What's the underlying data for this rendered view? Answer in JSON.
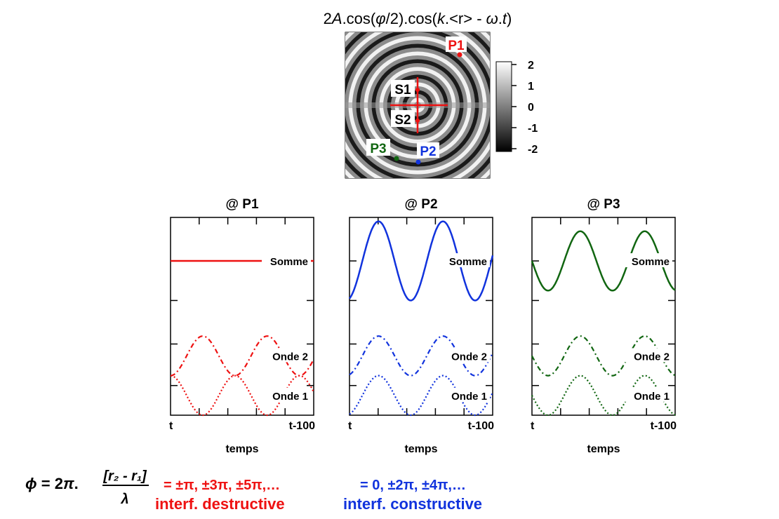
{
  "header": {
    "equation_title": {
      "prefix": "2",
      "A": "A",
      "cos1": ".cos(",
      "phi": "φ",
      "half": "/2).cos(",
      "k": "k",
      "r_part": ".<r> - ",
      "omega": "ω",
      "t_part": ".",
      "t": "t",
      "close": ")"
    }
  },
  "interference_map": {
    "colorbar_ticks": [
      "2",
      "1",
      "0",
      "-1",
      "-2"
    ],
    "labels": {
      "S1": "S1",
      "S2": "S2",
      "P1": "P1",
      "P2": "P2",
      "P3": "P3"
    },
    "colors": {
      "P1": "#ee1111",
      "P2": "#1133dd",
      "P3": "#116611",
      "cross": "#ee1111"
    }
  },
  "chart_data": [
    {
      "type": "line",
      "title": "@ P1",
      "xlabel": "temps",
      "x_tick_labels": [
        "t",
        "t-100"
      ],
      "color": "#ee1111",
      "ylim": [
        0,
        1
      ],
      "series": [
        {
          "name": "Somme",
          "style": "solid",
          "offset": 0.78,
          "amplitude": 0.0,
          "phase": 0.0
        },
        {
          "name": "Onde 2",
          "style": "dashdot",
          "offset": 0.3,
          "amplitude": 0.1,
          "phase": 3.1416
        },
        {
          "name": "Onde 1",
          "style": "dotted",
          "offset": 0.1,
          "amplitude": 0.1,
          "phase": 0.0
        }
      ],
      "period_fraction": 0.45,
      "wave_phase_start": 1.0
    },
    {
      "type": "line",
      "title": "@ P2",
      "xlabel": "temps",
      "x_tick_labels": [
        "t",
        "t-100"
      ],
      "color": "#1133dd",
      "ylim": [
        0,
        1
      ],
      "series": [
        {
          "name": "Somme",
          "style": "solid",
          "offset": 0.78,
          "amplitude": 0.2,
          "phase": 0.0
        },
        {
          "name": "Onde 2",
          "style": "dashdot",
          "offset": 0.3,
          "amplitude": 0.1,
          "phase": 0.0
        },
        {
          "name": "Onde 1",
          "style": "dotted",
          "offset": 0.1,
          "amplitude": 0.1,
          "phase": 0.0
        }
      ],
      "period_fraction": 0.45,
      "wave_phase_start": 0.55
    },
    {
      "type": "line",
      "title": "@ P3",
      "xlabel": "temps",
      "x_tick_labels": [
        "t",
        "t-100"
      ],
      "color": "#116611",
      "ylim": [
        0,
        1
      ],
      "series": [
        {
          "name": "Somme",
          "style": "solid",
          "offset": 0.78,
          "amplitude": 0.15,
          "phase": 0.0
        },
        {
          "name": "Onde 2",
          "style": "dashdot",
          "offset": 0.3,
          "amplitude": 0.1,
          "phase": 0.0
        },
        {
          "name": "Onde 1",
          "style": "dotted",
          "offset": 0.1,
          "amplitude": 0.1,
          "phase": 0.0
        }
      ],
      "period_fraction": 0.45,
      "wave_phase_start": 0.25
    }
  ],
  "footer": {
    "phi_symbol": "ϕ",
    "phi_eq": " = 2",
    "pi": "π",
    "dot": ".",
    "numerator": "[r₂ - r₁]",
    "denominator": "λ",
    "destructive_values": "= ±π, ±3π, ±5π,…",
    "destructive_label": "interf. destructive",
    "constructive_values": "= 0, ±2π, ±4π,…",
    "constructive_label": "interf. constructive",
    "destructive_color": "#ee1111",
    "constructive_color": "#1133dd"
  }
}
